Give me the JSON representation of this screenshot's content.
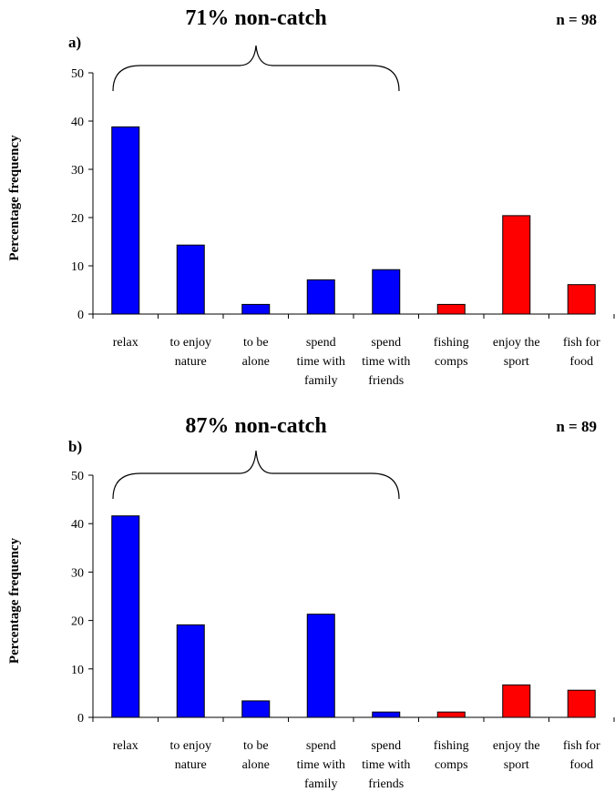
{
  "chart_data": [
    {
      "type": "bar",
      "panel": "a)",
      "n_label": "n = 98",
      "bracket_label": "71% non-catch",
      "ylabel": "Percentage frequency",
      "ylim": [
        0,
        50
      ],
      "yticks": [
        "0",
        "10",
        "20",
        "30",
        "40",
        "50"
      ],
      "categories": [
        [
          "relax"
        ],
        [
          "to enjoy",
          "nature"
        ],
        [
          "to be",
          "alone"
        ],
        [
          "spend",
          "time with",
          "family"
        ],
        [
          "spend",
          "time with",
          "friends"
        ],
        [
          "fishing",
          "comps"
        ],
        [
          "enjoy the",
          "sport"
        ],
        [
          "fish for",
          "food"
        ]
      ],
      "values": [
        38.8,
        14.3,
        2.0,
        7.1,
        9.2,
        2.0,
        20.4,
        6.1
      ],
      "bar_colors": [
        "#0000ff",
        "#0000ff",
        "#0000ff",
        "#0000ff",
        "#0000ff",
        "#ff0000",
        "#ff0000",
        "#ff0000"
      ]
    },
    {
      "type": "bar",
      "panel": "b)",
      "n_label": "n = 89",
      "bracket_label": "87% non-catch",
      "ylabel": "Percentage frequency",
      "ylim": [
        0,
        50
      ],
      "yticks": [
        "0",
        "10",
        "20",
        "30",
        "40",
        "50"
      ],
      "categories": [
        [
          "relax"
        ],
        [
          "to enjoy",
          "nature"
        ],
        [
          "to be",
          "alone"
        ],
        [
          "spend",
          "time with",
          "family"
        ],
        [
          "spend",
          "time with",
          "friends"
        ],
        [
          "fishing",
          "comps"
        ],
        [
          "enjoy the",
          "sport"
        ],
        [
          "fish for",
          "food"
        ]
      ],
      "values": [
        41.6,
        19.1,
        3.4,
        21.3,
        1.1,
        1.1,
        6.7,
        5.6
      ],
      "bar_colors": [
        "#0000ff",
        "#0000ff",
        "#0000ff",
        "#0000ff",
        "#0000ff",
        "#ff0000",
        "#ff0000",
        "#ff0000"
      ]
    }
  ]
}
